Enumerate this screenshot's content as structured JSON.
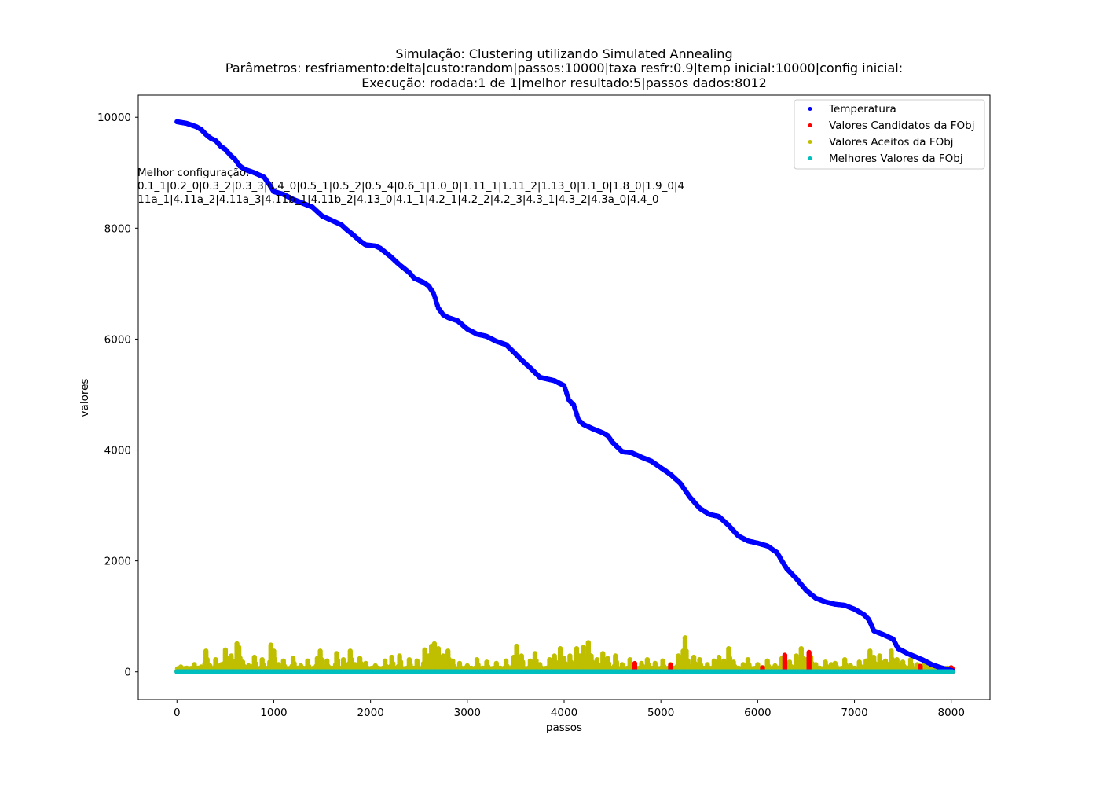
{
  "chart_data": {
    "type": "scatter",
    "title_lines": [
      "Simulação: Clustering utilizando Simulated Annealing",
      "Parâmetros: resfriamento:delta|custo:random|passos:10000|taxa resfr:0.9|temp inicial:10000|config inicial:",
      "Execução: rodada:1 de 1|melhor resultado:5|passos dados:8012"
    ],
    "xlabel": "passos",
    "ylabel": "valores",
    "xlim": [
      -400,
      8400
    ],
    "ylim": [
      -500,
      10400
    ],
    "x_ticks": [
      0,
      1000,
      2000,
      3000,
      4000,
      5000,
      6000,
      7000,
      8000
    ],
    "y_ticks": [
      0,
      2000,
      4000,
      6000,
      8000,
      10000
    ],
    "grid": false,
    "legend_position": "top-right",
    "annotation_lines": [
      "Melhor configuração:",
      "0.1_1|0.2_0|0.3_2|0.3_3|0.4_0|0.5_1|0.5_2|0.5_4|0.6_1|1.0_0|1.11_1|1.11_2|1.13_0|1.1_0|1.8_0|1.9_0|4",
      ".11a_1|4.11a_2|4.11a_3|4.11b_1|4.11b_2|4.13_0|4.1_1|4.2_1|4.2_2|4.2_3|4.3_1|4.3_2|4.3a_0|4.4_0"
    ],
    "series": [
      {
        "name": "Temperatura",
        "color": "#0000ff",
        "points": [
          [
            0,
            9920
          ],
          [
            100,
            9890
          ],
          [
            150,
            9860
          ],
          [
            200,
            9830
          ],
          [
            250,
            9780
          ],
          [
            300,
            9690
          ],
          [
            350,
            9620
          ],
          [
            400,
            9580
          ],
          [
            450,
            9480
          ],
          [
            500,
            9420
          ],
          [
            550,
            9320
          ],
          [
            600,
            9240
          ],
          [
            650,
            9120
          ],
          [
            700,
            9060
          ],
          [
            800,
            9000
          ],
          [
            900,
            8920
          ],
          [
            950,
            8800
          ],
          [
            1000,
            8660
          ],
          [
            1100,
            8610
          ],
          [
            1200,
            8520
          ],
          [
            1300,
            8450
          ],
          [
            1400,
            8380
          ],
          [
            1450,
            8300
          ],
          [
            1500,
            8220
          ],
          [
            1600,
            8140
          ],
          [
            1700,
            8060
          ],
          [
            1750,
            7980
          ],
          [
            1800,
            7910
          ],
          [
            1900,
            7760
          ],
          [
            1950,
            7700
          ],
          [
            2050,
            7680
          ],
          [
            2100,
            7640
          ],
          [
            2200,
            7500
          ],
          [
            2300,
            7340
          ],
          [
            2400,
            7200
          ],
          [
            2450,
            7100
          ],
          [
            2550,
            7020
          ],
          [
            2600,
            6960
          ],
          [
            2650,
            6830
          ],
          [
            2700,
            6560
          ],
          [
            2750,
            6440
          ],
          [
            2800,
            6390
          ],
          [
            2900,
            6330
          ],
          [
            3000,
            6180
          ],
          [
            3100,
            6090
          ],
          [
            3200,
            6050
          ],
          [
            3300,
            5960
          ],
          [
            3400,
            5900
          ],
          [
            3500,
            5730
          ],
          [
            3550,
            5640
          ],
          [
            3650,
            5480
          ],
          [
            3750,
            5310
          ],
          [
            3900,
            5250
          ],
          [
            4000,
            5160
          ],
          [
            4050,
            4900
          ],
          [
            4100,
            4810
          ],
          [
            4150,
            4540
          ],
          [
            4200,
            4460
          ],
          [
            4300,
            4380
          ],
          [
            4400,
            4310
          ],
          [
            4450,
            4260
          ],
          [
            4500,
            4140
          ],
          [
            4600,
            3970
          ],
          [
            4700,
            3950
          ],
          [
            4800,
            3870
          ],
          [
            4900,
            3800
          ],
          [
            5000,
            3680
          ],
          [
            5100,
            3560
          ],
          [
            5200,
            3400
          ],
          [
            5300,
            3150
          ],
          [
            5400,
            2950
          ],
          [
            5500,
            2840
          ],
          [
            5600,
            2800
          ],
          [
            5700,
            2640
          ],
          [
            5800,
            2450
          ],
          [
            5900,
            2360
          ],
          [
            6000,
            2320
          ],
          [
            6100,
            2270
          ],
          [
            6200,
            2150
          ],
          [
            6250,
            2000
          ],
          [
            6300,
            1860
          ],
          [
            6400,
            1680
          ],
          [
            6500,
            1470
          ],
          [
            6600,
            1330
          ],
          [
            6700,
            1260
          ],
          [
            6800,
            1220
          ],
          [
            6900,
            1200
          ],
          [
            7000,
            1130
          ],
          [
            7100,
            1030
          ],
          [
            7150,
            940
          ],
          [
            7200,
            740
          ],
          [
            7300,
            670
          ],
          [
            7400,
            590
          ],
          [
            7450,
            420
          ],
          [
            7550,
            330
          ],
          [
            7700,
            220
          ],
          [
            7800,
            130
          ],
          [
            7900,
            70
          ],
          [
            8012,
            20
          ]
        ]
      },
      {
        "name": "Valores Candidatos da FObj",
        "color": "#ff0000",
        "points": [
          [
            4730,
            150
          ],
          [
            5100,
            130
          ],
          [
            6280,
            320
          ],
          [
            6530,
            350
          ],
          [
            6050,
            80
          ],
          [
            7680,
            120
          ],
          [
            8000,
            90
          ],
          [
            8012,
            70
          ]
        ]
      },
      {
        "name": "Valores Aceitos da FObj",
        "color": "#bfbf00",
        "points": [
          [
            40,
            100
          ],
          [
            100,
            60
          ],
          [
            180,
            150
          ],
          [
            250,
            90
          ],
          [
            300,
            380
          ],
          [
            340,
            120
          ],
          [
            400,
            220
          ],
          [
            460,
            150
          ],
          [
            500,
            410
          ],
          [
            520,
            250
          ],
          [
            560,
            300
          ],
          [
            620,
            520
          ],
          [
            640,
            450
          ],
          [
            680,
            180
          ],
          [
            740,
            110
          ],
          [
            800,
            280
          ],
          [
            880,
            220
          ],
          [
            970,
            490
          ],
          [
            1000,
            380
          ],
          [
            1050,
            150
          ],
          [
            1100,
            200
          ],
          [
            1200,
            250
          ],
          [
            1280,
            130
          ],
          [
            1350,
            200
          ],
          [
            1450,
            260
          ],
          [
            1480,
            380
          ],
          [
            1550,
            200
          ],
          [
            1650,
            350
          ],
          [
            1720,
            220
          ],
          [
            1790,
            380
          ],
          [
            1840,
            150
          ],
          [
            1890,
            260
          ],
          [
            1950,
            160
          ],
          [
            2050,
            130
          ],
          [
            2150,
            200
          ],
          [
            2220,
            270
          ],
          [
            2300,
            300
          ],
          [
            2400,
            240
          ],
          [
            2480,
            200
          ],
          [
            2560,
            400
          ],
          [
            2600,
            300
          ],
          [
            2630,
            480
          ],
          [
            2660,
            520
          ],
          [
            2700,
            430
          ],
          [
            2750,
            290
          ],
          [
            2800,
            380
          ],
          [
            2850,
            200
          ],
          [
            2920,
            160
          ],
          [
            3000,
            130
          ],
          [
            3100,
            220
          ],
          [
            3200,
            180
          ],
          [
            3300,
            160
          ],
          [
            3400,
            200
          ],
          [
            3480,
            280
          ],
          [
            3510,
            480
          ],
          [
            3560,
            300
          ],
          [
            3650,
            200
          ],
          [
            3700,
            350
          ],
          [
            3750,
            150
          ],
          [
            3850,
            230
          ],
          [
            3900,
            300
          ],
          [
            3960,
            420
          ],
          [
            4000,
            250
          ],
          [
            4060,
            300
          ],
          [
            4130,
            420
          ],
          [
            4160,
            300
          ],
          [
            4200,
            460
          ],
          [
            4250,
            540
          ],
          [
            4280,
            300
          ],
          [
            4340,
            230
          ],
          [
            4400,
            350
          ],
          [
            4450,
            250
          ],
          [
            4530,
            300
          ],
          [
            4600,
            150
          ],
          [
            4680,
            230
          ],
          [
            4800,
            170
          ],
          [
            4860,
            230
          ],
          [
            4940,
            160
          ],
          [
            5020,
            200
          ],
          [
            5100,
            150
          ],
          [
            5180,
            290
          ],
          [
            5230,
            380
          ],
          [
            5250,
            630
          ],
          [
            5280,
            200
          ],
          [
            5340,
            280
          ],
          [
            5400,
            220
          ],
          [
            5480,
            150
          ],
          [
            5550,
            200
          ],
          [
            5600,
            270
          ],
          [
            5650,
            210
          ],
          [
            5700,
            430
          ],
          [
            5750,
            180
          ],
          [
            5850,
            150
          ],
          [
            5900,
            230
          ],
          [
            6000,
            150
          ],
          [
            6100,
            200
          ],
          [
            6180,
            130
          ],
          [
            6250,
            250
          ],
          [
            6330,
            180
          ],
          [
            6400,
            300
          ],
          [
            6450,
            420
          ],
          [
            6500,
            230
          ],
          [
            6550,
            280
          ],
          [
            6600,
            150
          ],
          [
            6700,
            180
          ],
          [
            6760,
            150
          ],
          [
            6800,
            170
          ],
          [
            6900,
            230
          ],
          [
            6960,
            120
          ],
          [
            7050,
            180
          ],
          [
            7120,
            200
          ],
          [
            7160,
            380
          ],
          [
            7200,
            280
          ],
          [
            7260,
            300
          ],
          [
            7320,
            200
          ],
          [
            7380,
            380
          ],
          [
            7440,
            230
          ],
          [
            7500,
            180
          ],
          [
            7580,
            220
          ],
          [
            7650,
            150
          ],
          [
            7720,
            180
          ],
          [
            7800,
            120
          ],
          [
            7900,
            80
          ]
        ]
      },
      {
        "name": "Melhores Valores da FObj",
        "color": "#00bfbf",
        "points": [
          [
            0,
            0
          ],
          [
            8012,
            0
          ]
        ]
      }
    ]
  }
}
